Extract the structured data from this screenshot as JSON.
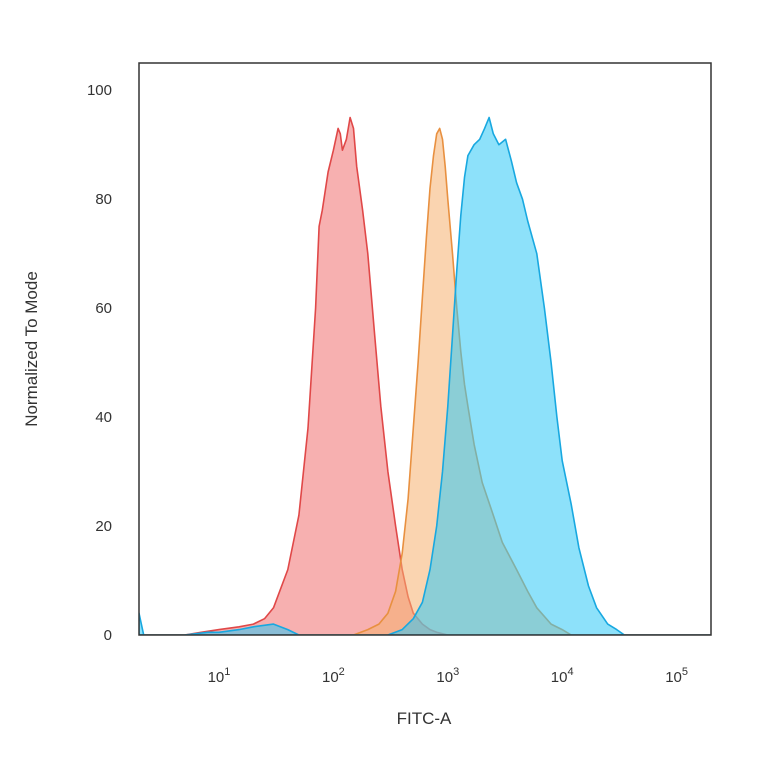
{
  "chart_data": {
    "type": "area",
    "title": "",
    "xlabel": "FITC-A",
    "ylabel": "Normalized To Mode",
    "x_scale": "log",
    "xlim": [
      2,
      200000
    ],
    "ylim": [
      0,
      105
    ],
    "grid": false,
    "legend": "none",
    "x_ticks": [
      {
        "value": 10,
        "base": "10",
        "exp": "1"
      },
      {
        "value": 100,
        "base": "10",
        "exp": "2"
      },
      {
        "value": 1000,
        "base": "10",
        "exp": "3"
      },
      {
        "value": 10000,
        "base": "10",
        "exp": "4"
      },
      {
        "value": 100000,
        "base": "10",
        "exp": "5"
      }
    ],
    "y_ticks": [
      "0",
      "20",
      "40",
      "60",
      "80",
      "100"
    ],
    "series": [
      {
        "color": "#f07070",
        "stroke": "#e04848",
        "points": [
          [
            2,
            0
          ],
          [
            5,
            0
          ],
          [
            7,
            0.5
          ],
          [
            10,
            1
          ],
          [
            15,
            1.5
          ],
          [
            20,
            2
          ],
          [
            25,
            3
          ],
          [
            30,
            5
          ],
          [
            40,
            12
          ],
          [
            50,
            22
          ],
          [
            60,
            38
          ],
          [
            70,
            60
          ],
          [
            75,
            75
          ],
          [
            80,
            78
          ],
          [
            90,
            85
          ],
          [
            100,
            89
          ],
          [
            110,
            93
          ],
          [
            115,
            92
          ],
          [
            120,
            89
          ],
          [
            130,
            91
          ],
          [
            140,
            95
          ],
          [
            150,
            93
          ],
          [
            160,
            86
          ],
          [
            180,
            78
          ],
          [
            200,
            70
          ],
          [
            230,
            55
          ],
          [
            260,
            42
          ],
          [
            300,
            30
          ],
          [
            350,
            20
          ],
          [
            400,
            12
          ],
          [
            450,
            7
          ],
          [
            500,
            4
          ],
          [
            600,
            2
          ],
          [
            700,
            1
          ],
          [
            800,
            0.5
          ],
          [
            1000,
            0
          ],
          [
            200000,
            0
          ]
        ]
      },
      {
        "color": "#f5b070",
        "stroke": "#e89040",
        "points": [
          [
            2,
            0
          ],
          [
            150,
            0
          ],
          [
            200,
            1
          ],
          [
            250,
            2
          ],
          [
            300,
            4
          ],
          [
            350,
            8
          ],
          [
            400,
            15
          ],
          [
            450,
            25
          ],
          [
            500,
            38
          ],
          [
            550,
            50
          ],
          [
            600,
            62
          ],
          [
            650,
            73
          ],
          [
            700,
            82
          ],
          [
            750,
            88
          ],
          [
            800,
            92
          ],
          [
            850,
            93
          ],
          [
            900,
            91
          ],
          [
            950,
            86
          ],
          [
            1000,
            80
          ],
          [
            1100,
            70
          ],
          [
            1200,
            60
          ],
          [
            1300,
            52
          ],
          [
            1400,
            46
          ],
          [
            1500,
            42
          ],
          [
            1700,
            35
          ],
          [
            2000,
            28
          ],
          [
            2500,
            22
          ],
          [
            3000,
            17
          ],
          [
            4000,
            12
          ],
          [
            5000,
            8
          ],
          [
            6000,
            5
          ],
          [
            8000,
            2
          ],
          [
            10000,
            1
          ],
          [
            12000,
            0
          ],
          [
            200000,
            0
          ]
        ]
      },
      {
        "color": "#30c8f5",
        "stroke": "#18a8e0",
        "points": [
          [
            2,
            4
          ],
          [
            2.2,
            0
          ],
          [
            5,
            0
          ],
          [
            8,
            0.5
          ],
          [
            10,
            0.5
          ],
          [
            15,
            1
          ],
          [
            20,
            1.5
          ],
          [
            30,
            2
          ],
          [
            40,
            1
          ],
          [
            50,
            0
          ],
          [
            300,
            0
          ],
          [
            400,
            1
          ],
          [
            500,
            3
          ],
          [
            600,
            6
          ],
          [
            700,
            12
          ],
          [
            800,
            20
          ],
          [
            900,
            30
          ],
          [
            1000,
            42
          ],
          [
            1100,
            55
          ],
          [
            1200,
            67
          ],
          [
            1300,
            77
          ],
          [
            1400,
            84
          ],
          [
            1500,
            88
          ],
          [
            1700,
            90
          ],
          [
            1900,
            91
          ],
          [
            2100,
            93
          ],
          [
            2300,
            95
          ],
          [
            2500,
            92
          ],
          [
            2800,
            90
          ],
          [
            3200,
            91
          ],
          [
            3600,
            87
          ],
          [
            4000,
            83
          ],
          [
            4500,
            80
          ],
          [
            5000,
            76
          ],
          [
            6000,
            70
          ],
          [
            7000,
            60
          ],
          [
            8000,
            50
          ],
          [
            9000,
            40
          ],
          [
            10000,
            32
          ],
          [
            12000,
            24
          ],
          [
            14000,
            16
          ],
          [
            17000,
            9
          ],
          [
            20000,
            5
          ],
          [
            25000,
            2
          ],
          [
            30000,
            1
          ],
          [
            35000,
            0
          ],
          [
            200000,
            0
          ]
        ]
      }
    ]
  }
}
